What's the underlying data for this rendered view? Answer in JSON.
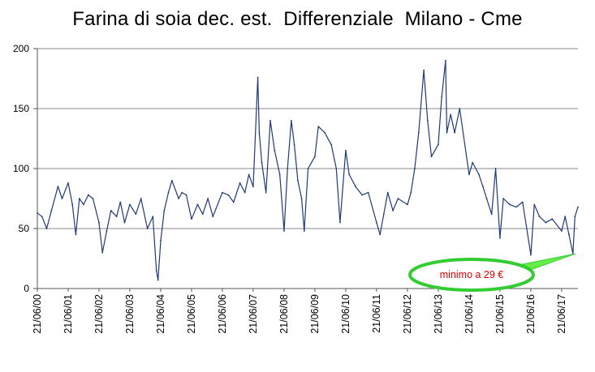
{
  "chart_data": {
    "type": "line",
    "title": "Farina di soia dec. est.  Differenziale  Milano - Cme",
    "xlabel": "",
    "ylabel": "",
    "ylim": [
      0,
      200
    ],
    "yticks": [
      0,
      50,
      100,
      150,
      200
    ],
    "grid": true,
    "legend": "none",
    "x_range": [
      "21/06/00",
      "31/12/17"
    ],
    "x_tick_labels": [
      "21/06/00",
      "21/06/01",
      "21/06/02",
      "21/06/03",
      "21/06/04",
      "21/06/05",
      "21/06/06",
      "21/06/07",
      "21/06/08",
      "21/06/09",
      "21/06/10",
      "21/06/11",
      "21/06/12",
      "21/06/13",
      "21/06/14",
      "21/06/15",
      "21/06/16",
      "21/06/17"
    ],
    "series": [
      {
        "color": "#1f3a78",
        "points": [
          [
            "21/06/00",
            63
          ],
          [
            "15/08/00",
            60
          ],
          [
            "10/10/00",
            50
          ],
          [
            "05/12/00",
            65
          ],
          [
            "20/02/01",
            85
          ],
          [
            "10/04/01",
            75
          ],
          [
            "21/06/01",
            88
          ],
          [
            "10/08/01",
            70
          ],
          [
            "20/09/01",
            45
          ],
          [
            "01/11/01",
            75
          ],
          [
            "20/12/01",
            70
          ],
          [
            "15/02/02",
            78
          ],
          [
            "10/04/02",
            75
          ],
          [
            "21/06/02",
            55
          ],
          [
            "01/08/02",
            30
          ],
          [
            "20/09/02",
            48
          ],
          [
            "10/11/02",
            65
          ],
          [
            "15/01/03",
            60
          ],
          [
            "01/03/03",
            72
          ],
          [
            "20/04/03",
            55
          ],
          [
            "21/06/03",
            70
          ],
          [
            "01/09/03",
            62
          ],
          [
            "01/11/03",
            75
          ],
          [
            "15/01/04",
            50
          ],
          [
            "20/03/04",
            60
          ],
          [
            "01/05/04",
            15
          ],
          [
            "20/05/04",
            7
          ],
          [
            "21/06/04",
            40
          ],
          [
            "01/08/04",
            65
          ],
          [
            "20/09/04",
            80
          ],
          [
            "01/11/04",
            90
          ],
          [
            "20/01/05",
            75
          ],
          [
            "01/03/05",
            80
          ],
          [
            "20/04/05",
            78
          ],
          [
            "21/06/05",
            58
          ],
          [
            "01/09/05",
            70
          ],
          [
            "01/11/05",
            62
          ],
          [
            "01/01/06",
            75
          ],
          [
            "01/03/06",
            60
          ],
          [
            "21/06/06",
            80
          ],
          [
            "01/09/06",
            78
          ],
          [
            "01/11/06",
            72
          ],
          [
            "15/01/07",
            88
          ],
          [
            "15/03/07",
            80
          ],
          [
            "01/05/07",
            95
          ],
          [
            "21/06/07",
            85
          ],
          [
            "15/08/07",
            176
          ],
          [
            "01/09/07",
            130
          ],
          [
            "01/10/07",
            105
          ],
          [
            "20/11/07",
            80
          ],
          [
            "10/01/08",
            140
          ],
          [
            "01/03/08",
            115
          ],
          [
            "01/05/08",
            95
          ],
          [
            "21/06/08",
            48
          ],
          [
            "01/08/08",
            100
          ],
          [
            "15/09/08",
            140
          ],
          [
            "20/10/08",
            120
          ],
          [
            "01/12/08",
            90
          ],
          [
            "15/01/09",
            75
          ],
          [
            "15/02/09",
            48
          ],
          [
            "01/04/09",
            100
          ],
          [
            "21/06/09",
            110
          ],
          [
            "01/08/09",
            135
          ],
          [
            "15/10/09",
            130
          ],
          [
            "01/01/10",
            120
          ],
          [
            "01/03/10",
            100
          ],
          [
            "15/04/10",
            55
          ],
          [
            "21/06/10",
            115
          ],
          [
            "01/08/10",
            95
          ],
          [
            "15/10/10",
            85
          ],
          [
            "01/01/11",
            78
          ],
          [
            "15/03/11",
            80
          ],
          [
            "21/06/11",
            55
          ],
          [
            "01/08/11",
            45
          ],
          [
            "15/09/11",
            62
          ],
          [
            "01/11/11",
            80
          ],
          [
            "01/01/12",
            65
          ],
          [
            "01/03/12",
            75
          ],
          [
            "21/06/12",
            70
          ],
          [
            "01/08/12",
            80
          ],
          [
            "15/09/12",
            100
          ],
          [
            "01/11/12",
            130
          ],
          [
            "01/01/13",
            182
          ],
          [
            "15/02/13",
            140
          ],
          [
            "01/04/13",
            110
          ],
          [
            "21/06/13",
            120
          ],
          [
            "01/08/13",
            160
          ],
          [
            "15/09/13",
            190
          ],
          [
            "01/10/13",
            130
          ],
          [
            "15/11/13",
            145
          ],
          [
            "01/01/14",
            130
          ],
          [
            "01/03/14",
            150
          ],
          [
            "21/06/14",
            95
          ],
          [
            "01/08/14",
            105
          ],
          [
            "15/10/14",
            95
          ],
          [
            "01/12/14",
            85
          ],
          [
            "15/01/15",
            75
          ],
          [
            "15/03/15",
            62
          ],
          [
            "01/05/15",
            100
          ],
          [
            "21/06/15",
            42
          ],
          [
            "01/08/15",
            75
          ],
          [
            "15/10/15",
            70
          ],
          [
            "01/01/16",
            68
          ],
          [
            "15/03/16",
            72
          ],
          [
            "21/06/16",
            28
          ],
          [
            "01/08/16",
            70
          ],
          [
            "01/10/16",
            60
          ],
          [
            "15/12/16",
            55
          ],
          [
            "01/03/17",
            58
          ],
          [
            "21/06/17",
            48
          ],
          [
            "01/08/17",
            60
          ],
          [
            "15/09/17",
            45
          ],
          [
            "01/11/17",
            29
          ],
          [
            "25/11/17",
            60
          ],
          [
            "31/12/17",
            68
          ]
        ]
      }
    ],
    "annotations": [
      {
        "text": "minimo a 29 €",
        "color": "#e00000",
        "border_color": "#33cc33",
        "points_to": "01/11/17"
      }
    ]
  }
}
